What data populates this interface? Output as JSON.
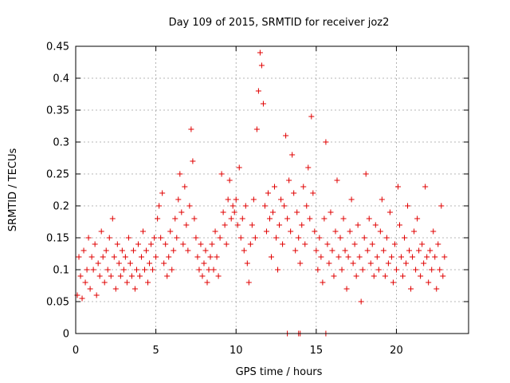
{
  "chart_data": {
    "type": "scatter",
    "title": "Day 109 of 2015, SRMTID for receiver joz2",
    "xlabel": "GPS time / hours",
    "ylabel": "SRMTID / TECUs",
    "xlim": [
      0,
      24.5
    ],
    "ylim": [
      0,
      0.45
    ],
    "x_ticks": [
      0,
      5,
      10,
      15,
      20
    ],
    "y_ticks": [
      0,
      0.05,
      0.1,
      0.15,
      0.2,
      0.25,
      0.3,
      0.35,
      0.4,
      0.45
    ],
    "x_tick_labels": [
      "0",
      "5",
      "10",
      "15",
      "20"
    ],
    "y_tick_labels": [
      "0",
      "0.05",
      "0.1",
      "0.15",
      "0.2",
      "0.25",
      "0.3",
      "0.35",
      "0.4",
      "0.45"
    ],
    "grid": true,
    "marker": "+",
    "color": "#e00000",
    "series": [
      {
        "name": "joz2",
        "points": [
          [
            0.1,
            0.06
          ],
          [
            0.2,
            0.12
          ],
          [
            0.3,
            0.09
          ],
          [
            0.4,
            0.055
          ],
          [
            0.5,
            0.13
          ],
          [
            0.6,
            0.08
          ],
          [
            0.7,
            0.1
          ],
          [
            0.8,
            0.15
          ],
          [
            0.9,
            0.07
          ],
          [
            1.0,
            0.12
          ],
          [
            1.1,
            0.1
          ],
          [
            1.2,
            0.14
          ],
          [
            1.3,
            0.06
          ],
          [
            1.4,
            0.11
          ],
          [
            1.5,
            0.09
          ],
          [
            1.6,
            0.16
          ],
          [
            1.7,
            0.12
          ],
          [
            1.8,
            0.08
          ],
          [
            1.9,
            0.13
          ],
          [
            2.0,
            0.1
          ],
          [
            2.1,
            0.15
          ],
          [
            2.2,
            0.09
          ],
          [
            2.3,
            0.18
          ],
          [
            2.4,
            0.12
          ],
          [
            2.5,
            0.07
          ],
          [
            2.6,
            0.14
          ],
          [
            2.7,
            0.11
          ],
          [
            2.8,
            0.09
          ],
          [
            2.9,
            0.13
          ],
          [
            3.0,
            0.1
          ],
          [
            3.1,
            0.12
          ],
          [
            3.2,
            0.08
          ],
          [
            3.3,
            0.15
          ],
          [
            3.4,
            0.11
          ],
          [
            3.5,
            0.09
          ],
          [
            3.6,
            0.13
          ],
          [
            3.7,
            0.07
          ],
          [
            3.8,
            0.1
          ],
          [
            3.9,
            0.14
          ],
          [
            4.0,
            0.09
          ],
          [
            4.1,
            0.12
          ],
          [
            4.2,
            0.16
          ],
          [
            4.3,
            0.1
          ],
          [
            4.4,
            0.13
          ],
          [
            4.5,
            0.08
          ],
          [
            4.6,
            0.11
          ],
          [
            4.7,
            0.14
          ],
          [
            4.8,
            0.1
          ],
          [
            4.9,
            0.15
          ],
          [
            5.0,
            0.12
          ],
          [
            5.1,
            0.18
          ],
          [
            5.2,
            0.2
          ],
          [
            5.3,
            0.15
          ],
          [
            5.4,
            0.22
          ],
          [
            5.5,
            0.11
          ],
          [
            5.6,
            0.14
          ],
          [
            5.7,
            0.09
          ],
          [
            5.8,
            0.12
          ],
          [
            5.9,
            0.16
          ],
          [
            6.0,
            0.1
          ],
          [
            6.1,
            0.13
          ],
          [
            6.2,
            0.18
          ],
          [
            6.3,
            0.15
          ],
          [
            6.4,
            0.21
          ],
          [
            6.5,
            0.25
          ],
          [
            6.6,
            0.19
          ],
          [
            6.7,
            0.14
          ],
          [
            6.8,
            0.23
          ],
          [
            6.9,
            0.17
          ],
          [
            7.0,
            0.13
          ],
          [
            7.1,
            0.2
          ],
          [
            7.2,
            0.32
          ],
          [
            7.3,
            0.27
          ],
          [
            7.4,
            0.18
          ],
          [
            7.5,
            0.15
          ],
          [
            7.6,
            0.12
          ],
          [
            7.7,
            0.1
          ],
          [
            7.8,
            0.14
          ],
          [
            7.9,
            0.09
          ],
          [
            8.0,
            0.11
          ],
          [
            8.1,
            0.13
          ],
          [
            8.2,
            0.08
          ],
          [
            8.3,
            0.1
          ],
          [
            8.4,
            0.12
          ],
          [
            8.5,
            0.14
          ],
          [
            8.6,
            0.1
          ],
          [
            8.7,
            0.16
          ],
          [
            8.8,
            0.12
          ],
          [
            8.9,
            0.09
          ],
          [
            9.0,
            0.15
          ],
          [
            9.1,
            0.25
          ],
          [
            9.2,
            0.19
          ],
          [
            9.3,
            0.17
          ],
          [
            9.4,
            0.14
          ],
          [
            9.5,
            0.21
          ],
          [
            9.6,
            0.24
          ],
          [
            9.7,
            0.18
          ],
          [
            9.8,
            0.2
          ],
          [
            9.9,
            0.19
          ],
          [
            10.0,
            0.21
          ],
          [
            10.1,
            0.17
          ],
          [
            10.2,
            0.26
          ],
          [
            10.3,
            0.15
          ],
          [
            10.4,
            0.18
          ],
          [
            10.5,
            0.13
          ],
          [
            10.6,
            0.2
          ],
          [
            10.7,
            0.11
          ],
          [
            10.8,
            0.08
          ],
          [
            10.9,
            0.14
          ],
          [
            11.0,
            0.17
          ],
          [
            11.1,
            0.21
          ],
          [
            11.2,
            0.15
          ],
          [
            11.3,
            0.32
          ],
          [
            11.4,
            0.38
          ],
          [
            11.5,
            0.44
          ],
          [
            11.6,
            0.42
          ],
          [
            11.7,
            0.36
          ],
          [
            11.8,
            0.2
          ],
          [
            11.9,
            0.16
          ],
          [
            12.0,
            0.22
          ],
          [
            12.1,
            0.18
          ],
          [
            12.2,
            0.12
          ],
          [
            12.3,
            0.19
          ],
          [
            12.4,
            0.23
          ],
          [
            12.5,
            0.15
          ],
          [
            12.6,
            0.1
          ],
          [
            12.7,
            0.17
          ],
          [
            12.8,
            0.21
          ],
          [
            12.9,
            0.14
          ],
          [
            13.0,
            0.2
          ],
          [
            13.1,
            0.31
          ],
          [
            13.2,
            0.18
          ],
          [
            13.3,
            0.24
          ],
          [
            13.4,
            0.16
          ],
          [
            13.5,
            0.28
          ],
          [
            13.6,
            0.22
          ],
          [
            13.7,
            0.13
          ],
          [
            13.8,
            0.19
          ],
          [
            13.9,
            0.15
          ],
          [
            14.0,
            0.11
          ],
          [
            14.1,
            0.17
          ],
          [
            14.2,
            0.23
          ],
          [
            14.3,
            0.14
          ],
          [
            14.4,
            0.2
          ],
          [
            14.5,
            0.26
          ],
          [
            14.6,
            0.18
          ],
          [
            14.7,
            0.34
          ],
          [
            14.8,
            0.22
          ],
          [
            14.9,
            0.16
          ],
          [
            15.0,
            0.13
          ],
          [
            15.1,
            0.1
          ],
          [
            15.2,
            0.15
          ],
          [
            15.3,
            0.12
          ],
          [
            15.4,
            0.08
          ],
          [
            15.5,
            0.18
          ],
          [
            15.6,
            0.3
          ],
          [
            15.7,
            0.14
          ],
          [
            15.8,
            0.11
          ],
          [
            15.9,
            0.19
          ],
          [
            16.0,
            0.13
          ],
          [
            16.1,
            0.09
          ],
          [
            16.2,
            0.16
          ],
          [
            16.3,
            0.24
          ],
          [
            16.4,
            0.12
          ],
          [
            16.5,
            0.15
          ],
          [
            16.6,
            0.1
          ],
          [
            16.7,
            0.18
          ],
          [
            16.8,
            0.13
          ],
          [
            16.9,
            0.07
          ],
          [
            17.0,
            0.12
          ],
          [
            17.1,
            0.16
          ],
          [
            17.2,
            0.21
          ],
          [
            17.3,
            0.11
          ],
          [
            17.4,
            0.14
          ],
          [
            17.5,
            0.09
          ],
          [
            17.6,
            0.17
          ],
          [
            17.7,
            0.12
          ],
          [
            17.8,
            0.05
          ],
          [
            17.9,
            0.1
          ],
          [
            18.0,
            0.15
          ],
          [
            18.1,
            0.25
          ],
          [
            18.2,
            0.13
          ],
          [
            18.3,
            0.18
          ],
          [
            18.4,
            0.11
          ],
          [
            18.5,
            0.14
          ],
          [
            18.6,
            0.09
          ],
          [
            18.7,
            0.17
          ],
          [
            18.8,
            0.12
          ],
          [
            18.9,
            0.1
          ],
          [
            19.0,
            0.16
          ],
          [
            19.1,
            0.21
          ],
          [
            19.2,
            0.13
          ],
          [
            19.3,
            0.09
          ],
          [
            19.4,
            0.15
          ],
          [
            19.5,
            0.11
          ],
          [
            19.6,
            0.19
          ],
          [
            19.7,
            0.12
          ],
          [
            19.8,
            0.08
          ],
          [
            19.9,
            0.14
          ],
          [
            20.0,
            0.1
          ],
          [
            20.1,
            0.23
          ],
          [
            20.2,
            0.17
          ],
          [
            20.3,
            0.12
          ],
          [
            20.4,
            0.09
          ],
          [
            20.5,
            0.15
          ],
          [
            20.6,
            0.11
          ],
          [
            20.7,
            0.2
          ],
          [
            20.8,
            0.13
          ],
          [
            20.9,
            0.07
          ],
          [
            21.0,
            0.12
          ],
          [
            21.1,
            0.16
          ],
          [
            21.2,
            0.1
          ],
          [
            21.3,
            0.18
          ],
          [
            21.4,
            0.13
          ],
          [
            21.5,
            0.09
          ],
          [
            21.6,
            0.14
          ],
          [
            21.7,
            0.11
          ],
          [
            21.8,
            0.23
          ],
          [
            21.9,
            0.12
          ],
          [
            22.0,
            0.08
          ],
          [
            22.1,
            0.13
          ],
          [
            22.2,
            0.1
          ],
          [
            22.3,
            0.16
          ],
          [
            22.4,
            0.12
          ],
          [
            22.5,
            0.07
          ],
          [
            22.6,
            0.14
          ],
          [
            22.7,
            0.1
          ],
          [
            22.8,
            0.2
          ],
          [
            22.9,
            0.09
          ],
          [
            23.0,
            0.12
          ],
          [
            13.2,
            0.0
          ],
          [
            13.9,
            0.0
          ],
          [
            14.0,
            0.0
          ],
          [
            15.6,
            0.0
          ]
        ]
      }
    ]
  }
}
